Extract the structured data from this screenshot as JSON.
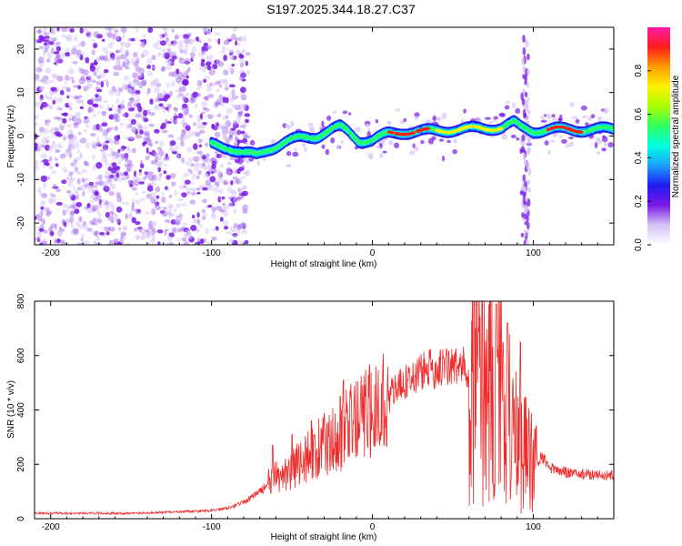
{
  "title": "S197.2025.344.18.27.C37",
  "chart_data": [
    {
      "type": "heatmap",
      "title": "S197.2025.344.18.27.C37",
      "xlabel": "Height of straight line (km)",
      "ylabel": "Frequency (Hz)",
      "xlim": [
        -210,
        150
      ],
      "ylim": [
        -25,
        25
      ],
      "xticks": [
        {
          "value": -200,
          "label": "-200"
        },
        {
          "value": -100,
          "label": "-100"
        },
        {
          "value": 0,
          "label": "0"
        },
        {
          "value": 100,
          "label": "100"
        }
      ],
      "yticks": [
        {
          "value": -20,
          "label": "-20"
        },
        {
          "value": -10,
          "label": "-10"
        },
        {
          "value": 0,
          "label": "0"
        },
        {
          "value": 10,
          "label": "10"
        },
        {
          "value": 20,
          "label": "20"
        }
      ],
      "noise_region_km": [
        -210,
        -85
      ],
      "ridge": {
        "x": [
          -100,
          -90,
          -80,
          -72,
          -65,
          -55,
          -45,
          -35,
          -25,
          -20,
          -15,
          -8,
          0,
          10,
          20,
          30,
          40,
          50,
          60,
          70,
          80,
          88,
          92,
          100,
          110,
          120,
          130,
          140,
          150
        ],
        "y": [
          -2,
          -2.5,
          -4,
          -4.5,
          -3,
          -1.5,
          -0.5,
          0,
          1.5,
          2,
          1,
          -1,
          -1,
          0.5,
          1,
          1,
          1.2,
          1.5,
          1.6,
          1.8,
          2,
          3,
          2,
          1.2,
          1.5,
          1.5,
          1.5,
          1.5,
          1.5
        ]
      },
      "vertical_spike_km": 95,
      "colorbar": {
        "label": "Normalized spectral amplitude",
        "range": [
          0,
          1
        ],
        "ticks": [
          "0.0",
          "0.2",
          "0.4",
          "0.6",
          "0.8"
        ],
        "colors": [
          "#ffffff",
          "#d5c3f5",
          "#7a1ae8",
          "#1f1af0",
          "#1aa0ff",
          "#00ffe0",
          "#2cff60",
          "#a6ff00",
          "#fff200",
          "#ff9d00",
          "#ff1c1c",
          "#ff1ca8"
        ]
      }
    },
    {
      "type": "line",
      "xlabel": "Height of straight line (km)",
      "ylabel": "SNR (10 * v/v)",
      "xlim": [
        -210,
        150
      ],
      "ylim": [
        0,
        800
      ],
      "xticks": [
        {
          "value": -200,
          "label": "-200"
        },
        {
          "value": -100,
          "label": "-100"
        },
        {
          "value": 0,
          "label": "0"
        },
        {
          "value": 100,
          "label": "100"
        }
      ],
      "yticks": [
        {
          "value": 0,
          "label": "0"
        },
        {
          "value": 200,
          "label": "200"
        },
        {
          "value": 400,
          "label": "400"
        },
        {
          "value": 600,
          "label": "600"
        },
        {
          "value": 800,
          "label": "800"
        }
      ],
      "series": [
        {
          "name": "SNR",
          "color": "#ee2c2c",
          "envelope": {
            "x": [
              -210,
              -180,
              -150,
              -120,
              -100,
              -90,
              -80,
              -70,
              -60,
              -50,
              -40,
              -30,
              -20,
              -10,
              0,
              10,
              20,
              30,
              40,
              50,
              60,
              70,
              80,
              90,
              100,
              105,
              110,
              120,
              130,
              140,
              150
            ],
            "y": [
              20,
              20,
              20,
              25,
              30,
              40,
              60,
              100,
              150,
              180,
              230,
              270,
              310,
              360,
              400,
              450,
              500,
              540,
              555,
              560,
              555,
              520,
              430,
              300,
              190,
              230,
              190,
              170,
              165,
              160,
              160
            ]
          },
          "peaks": [
            {
              "x": -62,
              "y": 270
            },
            {
              "x": -50,
              "y": 310
            },
            {
              "x": -38,
              "y": 360
            },
            {
              "x": -20,
              "y": 450
            },
            {
              "x": -18,
              "y": 510
            },
            {
              "x": 77,
              "y": 790
            },
            {
              "x": 80,
              "y": 800
            },
            {
              "x": 84,
              "y": 720
            },
            {
              "x": 92,
              "y": 650
            },
            {
              "x": 101,
              "y": 330
            }
          ]
        }
      ]
    }
  ]
}
